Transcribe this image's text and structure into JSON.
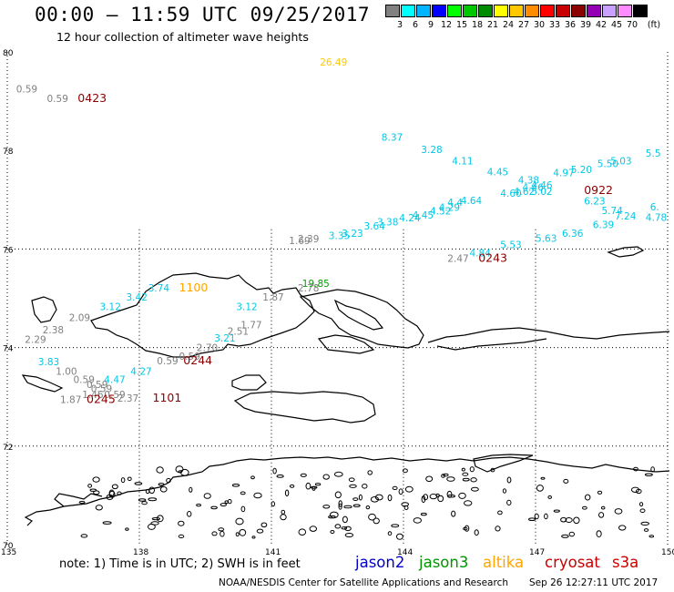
{
  "header": {
    "title": "00:00 – 11:59 UTC 09/25/2017",
    "subtitle": "12 hour collection of altimeter wave heights"
  },
  "legend": {
    "unit": "(ft)",
    "bins": [
      {
        "label": "3",
        "color": "#808080"
      },
      {
        "label": "6",
        "color": "#00ffff"
      },
      {
        "label": "9",
        "color": "#00b4ff"
      },
      {
        "label": "12",
        "color": "#0000ff"
      },
      {
        "label": "15",
        "color": "#00ff00"
      },
      {
        "label": "18",
        "color": "#00c800"
      },
      {
        "label": "21",
        "color": "#008c00"
      },
      {
        "label": "24",
        "color": "#ffff00"
      },
      {
        "label": "27",
        "color": "#ffc800"
      },
      {
        "label": "30",
        "color": "#ff8c00"
      },
      {
        "label": "33",
        "color": "#ff0000"
      },
      {
        "label": "36",
        "color": "#c80000"
      },
      {
        "label": "39",
        "color": "#8b0000"
      },
      {
        "label": "42",
        "color": "#9600b4"
      },
      {
        "label": "45",
        "color": "#c8a0ff"
      },
      {
        "label": "70",
        "color": "#ff8cff"
      },
      {
        "label": "",
        "color": "#000000"
      }
    ]
  },
  "axes": {
    "lat_ticks": [
      "80",
      "78",
      "76",
      "74",
      "72",
      "70"
    ],
    "lon_ticks": [
      "135",
      "138",
      "141",
      "144",
      "147",
      "150"
    ],
    "lat_range": [
      70,
      80
    ],
    "lon_range": [
      135,
      150
    ]
  },
  "chart_data": {
    "type": "scatter",
    "colors": {
      "grey": "#808080",
      "cyan": "#00c8e6",
      "green": "#00a000",
      "orange": "#ffa500",
      "yellow": "#ffc800",
      "darkred": "#8b0000"
    },
    "points": [
      {
        "lon": 142.1,
        "lat": 79.72,
        "text": "26.49",
        "c": "yellow"
      },
      {
        "lon": 135.2,
        "lat": 79.18,
        "text": "0.59",
        "c": "grey"
      },
      {
        "lon": 135.9,
        "lat": 78.98,
        "text": "0.59",
        "c": "grey"
      },
      {
        "lon": 136.6,
        "lat": 78.98,
        "text": "0423",
        "c": "darkred",
        "big": true
      },
      {
        "lon": 143.5,
        "lat": 78.2,
        "text": "8.37",
        "c": "cyan"
      },
      {
        "lon": 144.4,
        "lat": 77.95,
        "text": "3.28",
        "c": "cyan"
      },
      {
        "lon": 145.1,
        "lat": 77.72,
        "text": "4.11",
        "c": "cyan"
      },
      {
        "lon": 145.9,
        "lat": 77.5,
        "text": "4.45",
        "c": "cyan"
      },
      {
        "lon": 147.8,
        "lat": 77.54,
        "text": "5.20",
        "c": "cyan"
      },
      {
        "lon": 148.4,
        "lat": 77.66,
        "text": "5.50",
        "c": "cyan"
      },
      {
        "lon": 148.7,
        "lat": 77.72,
        "text": "5.03",
        "c": "cyan"
      },
      {
        "lon": 149.5,
        "lat": 77.87,
        "text": "5.5",
        "c": "cyan"
      },
      {
        "lon": 146.6,
        "lat": 77.33,
        "text": "4.38",
        "c": "cyan"
      },
      {
        "lon": 146.9,
        "lat": 77.23,
        "text": "4.46",
        "c": "cyan"
      },
      {
        "lon": 147.4,
        "lat": 77.48,
        "text": "4.97",
        "c": "cyan"
      },
      {
        "lon": 146.7,
        "lat": 77.18,
        "text": "4.46",
        "c": "cyan"
      },
      {
        "lon": 146.5,
        "lat": 77.1,
        "text": "4.62",
        "c": "cyan"
      },
      {
        "lon": 146.2,
        "lat": 77.06,
        "text": "4.60",
        "c": "cyan"
      },
      {
        "lon": 146.9,
        "lat": 77.1,
        "text": "5.02",
        "c": "cyan"
      },
      {
        "lon": 148.1,
        "lat": 77.12,
        "text": "0922",
        "c": "darkred",
        "big": true
      },
      {
        "lon": 148.1,
        "lat": 76.9,
        "text": "6.23",
        "c": "cyan"
      },
      {
        "lon": 148.5,
        "lat": 76.71,
        "text": "5.74",
        "c": "cyan"
      },
      {
        "lon": 148.8,
        "lat": 76.6,
        "text": "7.24",
        "c": "cyan"
      },
      {
        "lon": 149.5,
        "lat": 76.57,
        "text": "4.78",
        "c": "cyan"
      },
      {
        "lon": 149.6,
        "lat": 76.78,
        "text": "6.",
        "c": "cyan"
      },
      {
        "lon": 147.6,
        "lat": 76.25,
        "text": "6.36",
        "c": "cyan"
      },
      {
        "lon": 148.3,
        "lat": 76.42,
        "text": "6.39",
        "c": "cyan"
      },
      {
        "lon": 145.3,
        "lat": 76.91,
        "text": "4.64",
        "c": "cyan"
      },
      {
        "lon": 145.0,
        "lat": 76.88,
        "text": "4.4",
        "c": "cyan"
      },
      {
        "lon": 144.8,
        "lat": 76.77,
        "text": "4.29",
        "c": "cyan"
      },
      {
        "lon": 144.6,
        "lat": 76.7,
        "text": "4.52",
        "c": "cyan"
      },
      {
        "lon": 144.2,
        "lat": 76.62,
        "text": "4.45",
        "c": "cyan"
      },
      {
        "lon": 143.9,
        "lat": 76.56,
        "text": "4.24",
        "c": "cyan"
      },
      {
        "lon": 143.4,
        "lat": 76.48,
        "text": "3.38",
        "c": "cyan"
      },
      {
        "lon": 143.1,
        "lat": 76.4,
        "text": "3.64",
        "c": "cyan"
      },
      {
        "lon": 142.6,
        "lat": 76.25,
        "text": "3.23",
        "c": "cyan"
      },
      {
        "lon": 142.3,
        "lat": 76.2,
        "text": "3.35",
        "c": "cyan"
      },
      {
        "lon": 141.6,
        "lat": 76.14,
        "text": "2.39",
        "c": "grey"
      },
      {
        "lon": 141.4,
        "lat": 76.1,
        "text": "1.69",
        "c": "grey"
      },
      {
        "lon": 147.0,
        "lat": 76.15,
        "text": "5.63",
        "c": "cyan"
      },
      {
        "lon": 146.2,
        "lat": 76.02,
        "text": "5.53",
        "c": "cyan"
      },
      {
        "lon": 145.5,
        "lat": 75.85,
        "text": "4.84",
        "c": "cyan"
      },
      {
        "lon": 145.0,
        "lat": 75.74,
        "text": "2.47",
        "c": "grey"
      },
      {
        "lon": 145.7,
        "lat": 75.74,
        "text": "0243",
        "c": "darkred",
        "big": true
      },
      {
        "lon": 141.7,
        "lat": 75.23,
        "text": "19.85",
        "c": "green"
      },
      {
        "lon": 141.6,
        "lat": 75.14,
        "text": "2.78",
        "c": "grey"
      },
      {
        "lon": 140.8,
        "lat": 74.95,
        "text": "1.87",
        "c": "grey"
      },
      {
        "lon": 140.2,
        "lat": 74.76,
        "text": "3.12",
        "c": "cyan"
      },
      {
        "lon": 138.2,
        "lat": 75.14,
        "text": "3.74",
        "c": "cyan"
      },
      {
        "lon": 138.9,
        "lat": 75.14,
        "text": "1100",
        "c": "orange",
        "big": true
      },
      {
        "lon": 137.7,
        "lat": 74.95,
        "text": "3.42",
        "c": "cyan"
      },
      {
        "lon": 137.1,
        "lat": 74.76,
        "text": "3.12",
        "c": "cyan"
      },
      {
        "lon": 136.4,
        "lat": 74.54,
        "text": "2.09",
        "c": "grey"
      },
      {
        "lon": 135.8,
        "lat": 74.29,
        "text": "2.38",
        "c": "grey"
      },
      {
        "lon": 135.4,
        "lat": 74.09,
        "text": "2.29",
        "c": "grey"
      },
      {
        "lon": 140.3,
        "lat": 74.39,
        "text": "1.77",
        "c": "grey"
      },
      {
        "lon": 140.0,
        "lat": 74.26,
        "text": "2.51",
        "c": "grey"
      },
      {
        "lon": 139.7,
        "lat": 74.12,
        "text": "3.21",
        "c": "cyan"
      },
      {
        "lon": 139.3,
        "lat": 73.93,
        "text": "2.70",
        "c": "grey"
      },
      {
        "lon": 138.9,
        "lat": 73.75,
        "text": "0.59",
        "c": "grey"
      },
      {
        "lon": 138.4,
        "lat": 73.66,
        "text": "0.59",
        "c": "grey"
      },
      {
        "lon": 139.0,
        "lat": 73.66,
        "text": "0244",
        "c": "darkred",
        "big": true
      },
      {
        "lon": 135.7,
        "lat": 73.64,
        "text": "3.83",
        "c": "cyan"
      },
      {
        "lon": 136.1,
        "lat": 73.45,
        "text": "1.00",
        "c": "grey"
      },
      {
        "lon": 137.8,
        "lat": 73.45,
        "text": "4.27",
        "c": "cyan"
      },
      {
        "lon": 137.2,
        "lat": 73.28,
        "text": "4.47",
        "c": "cyan"
      },
      {
        "lon": 136.5,
        "lat": 73.28,
        "text": "0.59",
        "c": "grey"
      },
      {
        "lon": 136.8,
        "lat": 73.18,
        "text": "0.59",
        "c": "grey"
      },
      {
        "lon": 136.9,
        "lat": 73.1,
        "text": "0.59",
        "c": "grey"
      },
      {
        "lon": 136.7,
        "lat": 72.98,
        "text": "1.46",
        "c": "grey"
      },
      {
        "lon": 137.2,
        "lat": 72.98,
        "text": "0.59",
        "c": "grey"
      },
      {
        "lon": 136.2,
        "lat": 72.87,
        "text": "1.87",
        "c": "grey"
      },
      {
        "lon": 136.8,
        "lat": 72.87,
        "text": "0245",
        "c": "darkred",
        "big": true
      },
      {
        "lon": 137.5,
        "lat": 72.9,
        "text": "2.37",
        "c": "grey"
      },
      {
        "lon": 138.3,
        "lat": 72.9,
        "text": "1101",
        "c": "darkred",
        "big": true
      }
    ]
  },
  "footer": {
    "note": "note: 1) Time is in UTC; 2) SWH is in feet",
    "satellites": [
      {
        "label": "jason2",
        "color": "#0000c8"
      },
      {
        "label": "jason3",
        "color": "#009600"
      },
      {
        "label": "altika",
        "color": "#ffa500"
      },
      {
        "label": "cryosat",
        "color": "#c80000"
      },
      {
        "label": "s3a",
        "color": "#c80000"
      }
    ],
    "credit": "NOAA/NESDIS Center for Satellite Applications and Research",
    "timestamp": "Sep 26 12:27:11 UTC 2017"
  }
}
